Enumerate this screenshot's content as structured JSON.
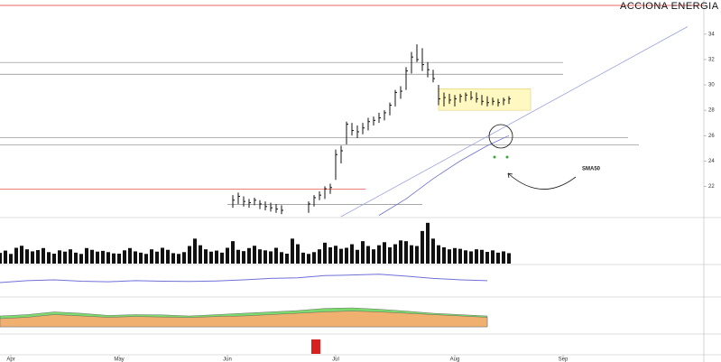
{
  "chart_data": [
    {
      "type": "ohlc",
      "title": "ACCIONA ENERGIA",
      "annotation": "SMA50",
      "x": [
        43,
        44,
        45,
        46,
        47,
        48,
        49,
        50,
        51,
        52,
        57,
        58,
        59,
        60,
        61,
        62,
        63,
        64,
        65,
        66,
        67,
        68,
        69,
        70,
        71,
        72,
        73,
        74,
        75,
        76,
        77,
        78,
        79,
        80,
        81,
        82,
        83,
        84,
        85,
        86,
        87,
        88,
        89,
        90,
        91,
        92,
        93,
        94
      ],
      "high": [
        21.3,
        21.5,
        21.2,
        21.0,
        21.1,
        20.9,
        20.8,
        20.7,
        20.6,
        20.5,
        20.8,
        21.3,
        21.6,
        22.0,
        22.2,
        24.9,
        25.2,
        27.1,
        27.0,
        26.8,
        27.0,
        27.4,
        27.5,
        27.8,
        28.0,
        28.6,
        29.6,
        29.9,
        31.4,
        32.6,
        33.2,
        32.9,
        31.8,
        31.2,
        30.0,
        29.4,
        29.3,
        29.2,
        29.3,
        29.4,
        29.5,
        29.4,
        29.2,
        29.1,
        29.0,
        28.9,
        29.0,
        29.1
      ],
      "low": [
        20.3,
        20.6,
        20.4,
        20.3,
        20.5,
        20.2,
        20.1,
        20.0,
        19.9,
        19.8,
        19.9,
        20.4,
        20.9,
        21.0,
        21.4,
        22.5,
        23.8,
        25.3,
        26.0,
        25.8,
        26.1,
        26.4,
        26.8,
        27.0,
        27.2,
        27.6,
        28.3,
        28.9,
        29.6,
        30.9,
        31.8,
        31.1,
        30.6,
        30.2,
        28.4,
        28.3,
        28.5,
        28.3,
        28.6,
        28.7,
        28.8,
        28.6,
        28.4,
        28.3,
        28.4,
        28.3,
        28.4,
        28.5
      ],
      "close": [
        20.9,
        21.2,
        20.8,
        20.7,
        20.9,
        20.6,
        20.4,
        20.3,
        20.2,
        20.1,
        20.6,
        21.1,
        21.3,
        21.8,
        21.9,
        24.5,
        24.8,
        26.9,
        26.4,
        26.3,
        26.6,
        27.1,
        27.2,
        27.4,
        27.8,
        28.4,
        29.4,
        29.5,
        31.1,
        32.2,
        32.0,
        31.6,
        31.2,
        30.5,
        28.9,
        29.0,
        28.8,
        28.9,
        29.1,
        29.2,
        29.0,
        28.9,
        28.7,
        28.6,
        28.7,
        28.6,
        28.8,
        28.9
      ],
      "color": "#111111",
      "ylim": [
        19.6,
        36.7
      ],
      "yticks": [
        22,
        24,
        26,
        28,
        30,
        32,
        34
      ],
      "xlim": [
        0,
        130
      ],
      "xticks": [
        {
          "value": 2,
          "label": "Apr"
        },
        {
          "value": 22,
          "label": "May"
        },
        {
          "value": 42,
          "label": "Jun"
        },
        {
          "value": 62,
          "label": "Jul"
        },
        {
          "value": 84,
          "label": "Aug"
        },
        {
          "value": 104,
          "label": "Sep"
        }
      ],
      "hlines": [
        {
          "value": 36.27,
          "color": "#e03030",
          "x": [
            0,
            130
          ]
        },
        {
          "value": 31.77,
          "color": "#888888",
          "x": [
            0,
            104
          ]
        },
        {
          "value": 30.84,
          "color": "#888888",
          "x": [
            0,
            104
          ]
        },
        {
          "value": 25.84,
          "color": "#888888",
          "x": [
            0,
            116
          ]
        },
        {
          "value": 25.27,
          "color": "#888888",
          "x": [
            0,
            118
          ]
        },
        {
          "value": 21.77,
          "color": "#e03030",
          "x": [
            0,
            67.5
          ]
        },
        {
          "value": 20.56,
          "color": "#888888",
          "x": [
            42,
            78
          ]
        }
      ],
      "zone": {
        "x": [
          81,
          98
        ],
        "values": [
          28.0,
          29.7
        ],
        "color": "#fff8c0"
      },
      "trendline": {
        "x": [
          63,
          127
        ],
        "values": [
          19.6,
          34.6
        ],
        "color": "#9aa0e0"
      },
      "sma50": {
        "x": [
          70,
          75,
          80,
          85,
          90,
          94
        ],
        "values": [
          19.7,
          21.0,
          22.6,
          24.0,
          25.2,
          26.0
        ],
        "color": "#6a70d0"
      }
    },
    {
      "type": "bar",
      "color": "#111111",
      "ylim": [
        0,
        1700
      ],
      "x": [
        0,
        1,
        2,
        3,
        4,
        5,
        6,
        7,
        8,
        9,
        10,
        11,
        12,
        13,
        14,
        15,
        16,
        17,
        18,
        19,
        20,
        21,
        22,
        23,
        24,
        25,
        26,
        27,
        28,
        29,
        30,
        31,
        32,
        33,
        34,
        35,
        36,
        37,
        38,
        39,
        40,
        41,
        42,
        43,
        44,
        45,
        46,
        47,
        48,
        49,
        50,
        51,
        52,
        53,
        54,
        55,
        56,
        57,
        58,
        59,
        60,
        61,
        62,
        63,
        64,
        65,
        66,
        67,
        68,
        69,
        70,
        71,
        72,
        73,
        74,
        75,
        76,
        77,
        78,
        79,
        80,
        81,
        82,
        83,
        84,
        85,
        86,
        87,
        88,
        89,
        90,
        91,
        92,
        93,
        94
      ],
      "values": [
        420,
        510,
        380,
        620,
        700,
        560,
        480,
        530,
        610,
        450,
        390,
        520,
        470,
        560,
        430,
        380,
        610,
        540,
        470,
        500,
        450,
        400,
        390,
        520,
        610,
        480,
        430,
        380,
        560,
        470,
        620,
        540,
        410,
        380,
        450,
        690,
        980,
        720,
        560,
        470,
        510,
        430,
        620,
        880,
        540,
        490,
        610,
        700,
        560,
        520,
        480,
        620,
        450,
        390,
        980,
        760,
        430,
        380,
        450,
        560,
        820,
        640,
        700,
        580,
        620,
        760,
        540,
        880,
        690,
        560,
        720,
        840,
        640,
        760,
        910,
        880,
        720,
        690,
        1280,
        1600,
        980,
        720,
        640,
        560,
        610,
        580,
        520,
        480,
        560,
        540,
        460,
        520,
        430,
        480,
        410
      ]
    },
    {
      "type": "line",
      "color": "#7070d8",
      "ylim": [
        0,
        100
      ],
      "x": [
        0,
        5,
        10,
        15,
        20,
        25,
        30,
        35,
        40,
        45,
        50,
        55,
        60,
        65,
        70,
        75,
        80,
        85,
        90
      ],
      "values": [
        45,
        52,
        55,
        50,
        48,
        52,
        50,
        49,
        51,
        55,
        60,
        62,
        70,
        72,
        75,
        68,
        60,
        55,
        52
      ]
    },
    {
      "type": "area",
      "ylim": [
        -20,
        100
      ],
      "x": [
        0,
        5,
        10,
        15,
        20,
        25,
        30,
        35,
        40,
        45,
        50,
        55,
        60,
        65,
        70,
        75,
        80,
        85,
        90
      ],
      "series": [
        {
          "color": "#7ed870",
          "values": [
            40,
            45,
            55,
            50,
            42,
            45,
            44,
            40,
            45,
            50,
            55,
            60,
            68,
            70,
            65,
            58,
            50,
            45,
            40
          ]
        },
        {
          "color": "#f0b070",
          "values": [
            30,
            35,
            45,
            40,
            35,
            38,
            36,
            34,
            38,
            40,
            45,
            50,
            55,
            58,
            55,
            50,
            45,
            40,
            35
          ]
        }
      ]
    }
  ]
}
